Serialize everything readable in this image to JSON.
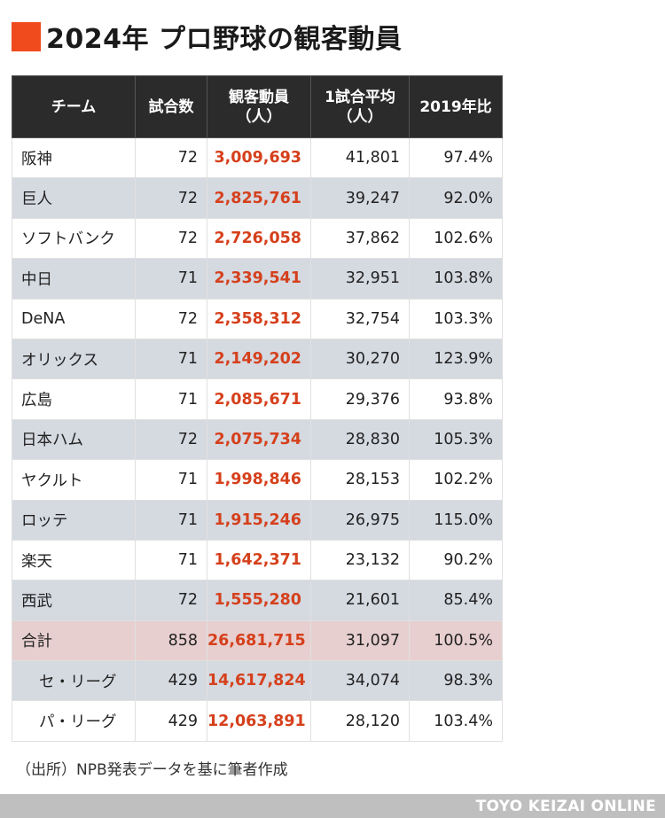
{
  "title": "2024年 プロ野球の観客動員",
  "source": "（出所）NPB発表データを基に筆者作成",
  "footer": "TOYO KEIZAI ONLINE",
  "colors": {
    "accent": "#f04b1d",
    "attendance_text": "#d5401c",
    "header_bg": "#2b2b2b",
    "row_alt_bg": "#d5d9e0",
    "total_bg": "#e8cfcf",
    "footer_bg": "#bfbfbf"
  },
  "chart_data": {
    "type": "table",
    "title": "2024年 プロ野球の観客動員",
    "columns": [
      [
        "チーム"
      ],
      [
        "試合数"
      ],
      [
        "観客動員",
        "（人）"
      ],
      [
        "1試合平均",
        "（人）"
      ],
      [
        "2019年比"
      ]
    ],
    "rows": [
      {
        "team": "阪神",
        "games": "72",
        "attendance": "3,009,693",
        "average": "41,801",
        "vs2019": "97.4%"
      },
      {
        "team": "巨人",
        "games": "72",
        "attendance": "2,825,761",
        "average": "39,247",
        "vs2019": "92.0%"
      },
      {
        "team": "ソフトバンク",
        "games": "72",
        "attendance": "2,726,058",
        "average": "37,862",
        "vs2019": "102.6%"
      },
      {
        "team": "中日",
        "games": "71",
        "attendance": "2,339,541",
        "average": "32,951",
        "vs2019": "103.8%"
      },
      {
        "team": "DeNA",
        "games": "72",
        "attendance": "2,358,312",
        "average": "32,754",
        "vs2019": "103.3%"
      },
      {
        "team": "オリックス",
        "games": "71",
        "attendance": "2,149,202",
        "average": "30,270",
        "vs2019": "123.9%"
      },
      {
        "team": "広島",
        "games": "71",
        "attendance": "2,085,671",
        "average": "29,376",
        "vs2019": "93.8%"
      },
      {
        "team": "日本ハム",
        "games": "72",
        "attendance": "2,075,734",
        "average": "28,830",
        "vs2019": "105.3%"
      },
      {
        "team": "ヤクルト",
        "games": "71",
        "attendance": "1,998,846",
        "average": "28,153",
        "vs2019": "102.2%"
      },
      {
        "team": "ロッテ",
        "games": "71",
        "attendance": "1,915,246",
        "average": "26,975",
        "vs2019": "115.0%"
      },
      {
        "team": "楽天",
        "games": "71",
        "attendance": "1,642,371",
        "average": "23,132",
        "vs2019": "90.2%"
      },
      {
        "team": "西武",
        "games": "72",
        "attendance": "1,555,280",
        "average": "21,601",
        "vs2019": "85.4%"
      },
      {
        "team": "合計",
        "games": "858",
        "attendance": "26,681,715",
        "average": "31,097",
        "vs2019": "100.5%",
        "kind": "total"
      },
      {
        "team": "セ・リーグ",
        "games": "429",
        "attendance": "14,617,824",
        "average": "34,074",
        "vs2019": "98.3%",
        "kind": "sub"
      },
      {
        "team": "パ・リーグ",
        "games": "429",
        "attendance": "12,063,891",
        "average": "28,120",
        "vs2019": "103.4%",
        "kind": "sub"
      }
    ]
  }
}
